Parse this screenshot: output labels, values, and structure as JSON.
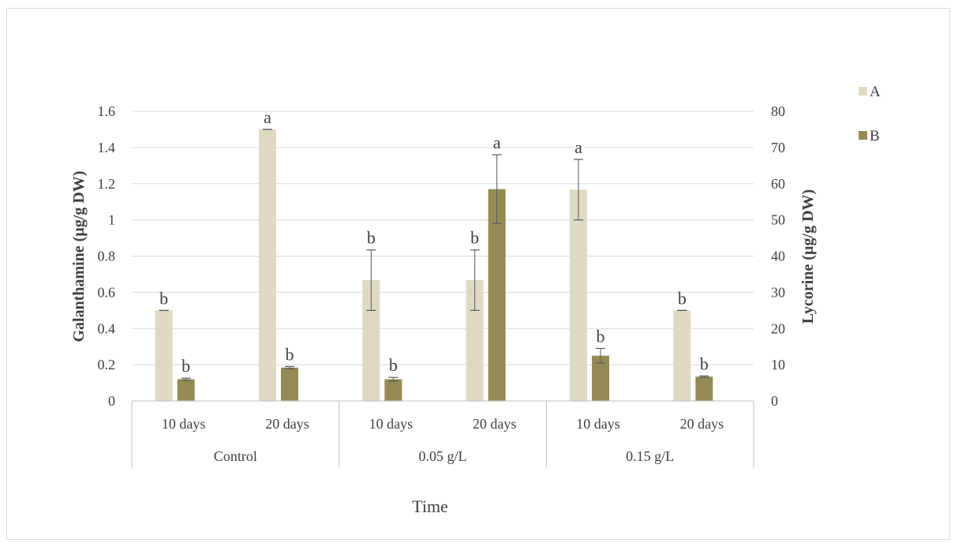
{
  "chart_data": {
    "type": "bar",
    "title": "",
    "xlabel": "Time",
    "ylabel": "Galanthamine (µg/g DW)",
    "y2label": "Lycorine (µg/g DW)",
    "ylim": [
      0,
      1.6
    ],
    "y2lim": [
      0,
      80
    ],
    "yticks": [
      "0",
      "0.2",
      "0.4",
      "0.6",
      "0.8",
      "1",
      "1.2",
      "1.4",
      "1.6"
    ],
    "y2ticks": [
      "0",
      "10",
      "20",
      "30",
      "40",
      "50",
      "60",
      "70",
      "80"
    ],
    "groups": [
      "Control",
      "0.05 g/L",
      "0.15 g/L"
    ],
    "categories": [
      "10 days",
      "20 days",
      "10 days",
      "20 days",
      "10 days",
      "20 days"
    ],
    "grid": true,
    "legend_position": "right",
    "series": [
      {
        "name": "A",
        "axis": "left",
        "color": "#ddd9c3",
        "values": [
          0.5,
          1.5,
          0.667,
          0.667,
          1.167,
          0.5
        ],
        "errors": [
          0.0,
          0.0,
          0.167,
          0.167,
          0.167,
          0.0
        ],
        "labels": [
          "b",
          "a",
          "b",
          "b",
          "a",
          "b"
        ]
      },
      {
        "name": "B",
        "axis": "right",
        "color": "#948a54",
        "values": [
          6.0,
          9.2,
          6.0,
          58.5,
          12.5,
          6.7
        ],
        "errors": [
          0.3,
          0.3,
          0.5,
          9.5,
          2.0,
          0.2
        ],
        "labels": [
          "b",
          "b",
          "b",
          "a",
          "b",
          "b"
        ]
      }
    ]
  }
}
